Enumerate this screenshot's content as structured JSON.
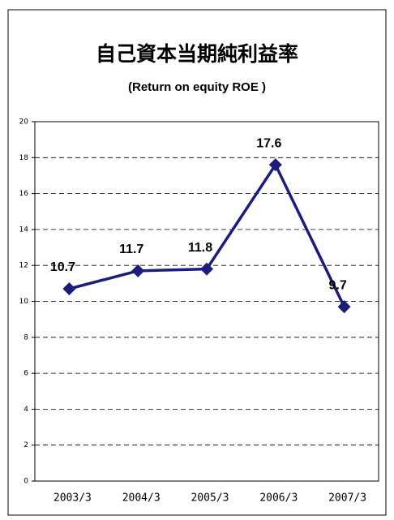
{
  "chart_data": {
    "type": "line",
    "title": "自己資本当期純利益率",
    "subtitle": "(Return on equity  ROE )",
    "categories": [
      "2003/3",
      "2004/3",
      "2005/3",
      "2006/3",
      "2007/3"
    ],
    "values": [
      10.7,
      11.7,
      11.8,
      17.6,
      9.7
    ],
    "color": "#1c1c7c",
    "ylim": [
      0,
      20
    ],
    "yticks": [
      0,
      2,
      4,
      6,
      8,
      10,
      12,
      14,
      16,
      18,
      20
    ],
    "grid": true
  }
}
